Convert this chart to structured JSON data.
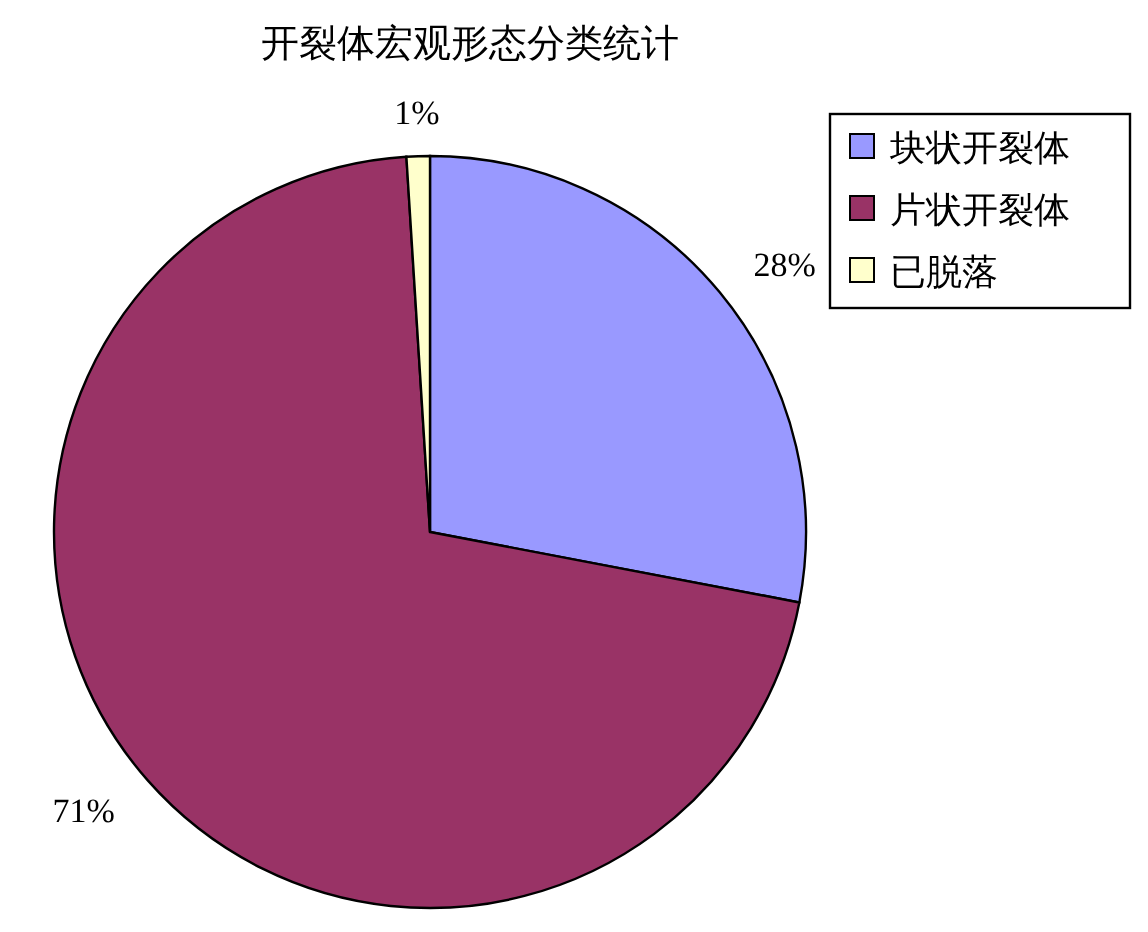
{
  "chart_data": {
    "type": "pie",
    "title": "开裂体宏观形态分类统计",
    "categories": [
      "块状开裂体",
      "片状开裂体",
      "已脱落"
    ],
    "values": [
      28,
      71,
      1
    ],
    "colors": [
      "#9999ff",
      "#993366",
      "#ffffcc"
    ],
    "value_labels": [
      "28%",
      "71%",
      "1%"
    ],
    "legend": "right"
  }
}
